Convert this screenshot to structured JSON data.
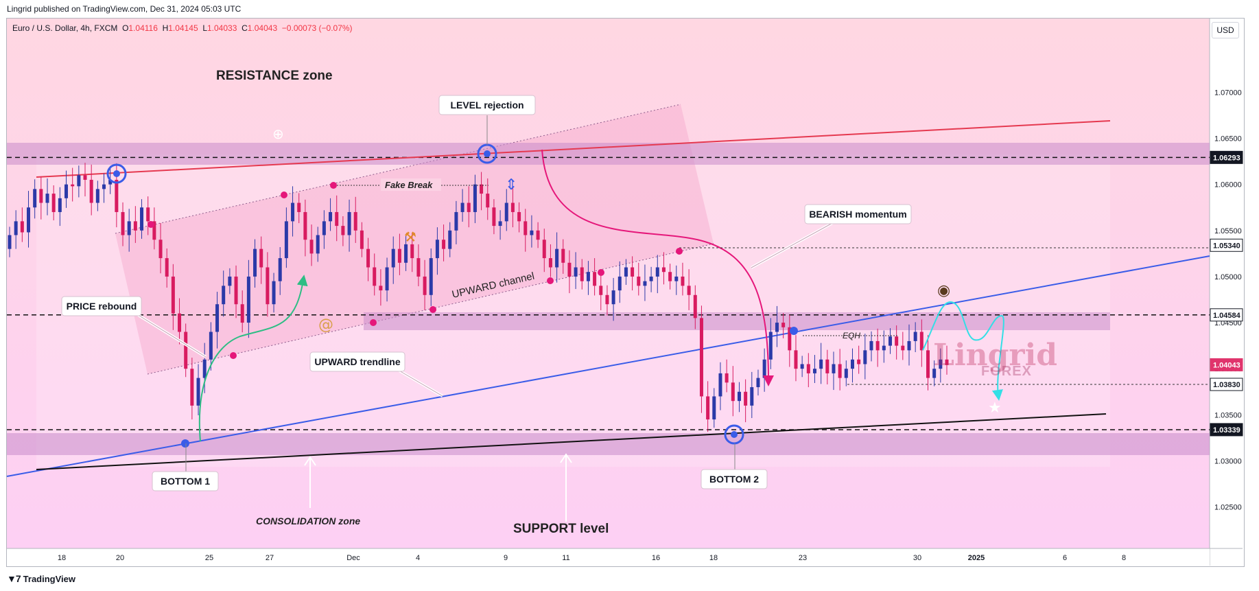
{
  "header": {
    "published": "Lingrid published on TradingView.com, Dec 31, 2024 05:03 UTC",
    "symbol": "Euro / U.S. Dollar, 4h, FXCM",
    "o_label": "O",
    "o": "1.04116",
    "h_label": "H",
    "h": "1.04145",
    "l_label": "L",
    "l": "1.04033",
    "c_label": "C",
    "c": "1.04043",
    "change": "−0.00073 (−0.07%)",
    "currency": "USD"
  },
  "footer": {
    "brand": "TradingView"
  },
  "watermark": {
    "main": "Lingrid",
    "sub": "FOREX"
  },
  "colors": {
    "bg_top": "#ffd6e0",
    "bg_bottom": "#fdd0f3",
    "zone": "#d9a6d6",
    "up": "#2b3aa8",
    "down": "#d81b60",
    "resistance_line": "#e53950",
    "trend_line": "#3a5ce8",
    "support_line": "#111111",
    "cyan": "#32dfe6",
    "pink": "#e5177a"
  },
  "annotations": {
    "resistance_zone": "RESISTANCE zone",
    "level_rejection": "LEVEL rejection",
    "fake_break": "Fake Break",
    "bearish_momentum": "BEARISH momentum",
    "upward_channel": "UPWARD channel",
    "price_rebound": "PRICE rebound",
    "upward_trendline": "UPWARD trendline",
    "bottom1": "BOTTOM 1",
    "bottom2": "BOTTOM 2",
    "consolidation": "CONSOLIDATION zone",
    "support_level": "SUPPORT level",
    "eqh": "EQH"
  },
  "chart_data": {
    "type": "candlestick",
    "y_axis_ticks": [
      "1.07000",
      "1.06500",
      "1.06000",
      "1.05500",
      "1.05000",
      "1.04500",
      "1.04000",
      "1.03500",
      "1.03000",
      "1.02500"
    ],
    "y_range": [
      1.0205,
      1.078
    ],
    "x_axis_ticks": [
      "18",
      "20",
      "25",
      "27",
      "Dec",
      "4",
      "9",
      "11",
      "16",
      "18",
      "23",
      "30",
      "2025",
      "6",
      "8"
    ],
    "levels": [
      {
        "label": "1.06293",
        "value": 1.06293,
        "style": "dark"
      },
      {
        "label": "1.05340",
        "value": 1.0534,
        "style": "outline"
      },
      {
        "label": "1.04584",
        "value": 1.04584,
        "style": "outline"
      },
      {
        "label": "1.04043",
        "value": 1.04043,
        "style": "current"
      },
      {
        "label": "1.03830",
        "value": 1.0383,
        "style": "outline"
      },
      {
        "label": "1.03339",
        "value": 1.03339,
        "style": "dark"
      }
    ],
    "closes": [
      1.0545,
      1.056,
      1.0548,
      1.0575,
      1.0595,
      1.058,
      1.059,
      1.057,
      1.0585,
      1.06,
      1.0598,
      1.061,
      1.0605,
      1.058,
      1.0595,
      1.06,
      1.0605,
      1.057,
      1.0545,
      1.056,
      1.055,
      1.0575,
      1.056,
      1.054,
      1.052,
      1.05,
      1.046,
      1.044,
      1.04,
      1.036,
      1.039,
      1.041,
      1.044,
      1.047,
      1.049,
      1.05,
      1.047,
      1.045,
      1.05,
      1.053,
      1.051,
      1.047,
      1.0495,
      1.052,
      1.056,
      1.058,
      1.057,
      1.054,
      1.0525,
      1.0545,
      1.056,
      1.057,
      1.0555,
      1.0545,
      1.057,
      1.055,
      1.053,
      1.051,
      1.049,
      1.0485,
      1.051,
      1.053,
      1.0515,
      1.0535,
      1.052,
      1.05,
      1.048,
      1.052,
      1.054,
      1.053,
      1.055,
      1.057,
      1.058,
      1.057,
      1.06,
      1.059,
      1.0575,
      1.0555,
      1.056,
      1.058,
      1.057,
      1.056,
      1.0545,
      1.055,
      1.054,
      1.052,
      1.051,
      1.053,
      1.0515,
      1.05,
      1.051,
      1.0495,
      1.0505,
      1.049,
      1.048,
      1.047,
      1.0485,
      1.05,
      1.051,
      1.05,
      1.049,
      1.0495,
      1.05,
      1.051,
      1.0505,
      1.0495,
      1.05,
      1.049,
      1.048,
      1.0455,
      1.037,
      1.0345,
      1.037,
      1.0395,
      1.0385,
      1.0365,
      1.0375,
      1.036,
      1.038,
      1.039,
      1.041,
      1.044,
      1.045,
      1.0445,
      1.042,
      1.04,
      1.0405,
      1.0395,
      1.04,
      1.041,
      1.0395,
      1.0405,
      1.039,
      1.04,
      1.041,
      1.0405,
      1.042,
      1.043,
      1.042,
      1.0425,
      1.0435,
      1.0425,
      1.042,
      1.043,
      1.044,
      1.042,
      1.039,
      1.04,
      1.041,
      1.0404
    ]
  }
}
